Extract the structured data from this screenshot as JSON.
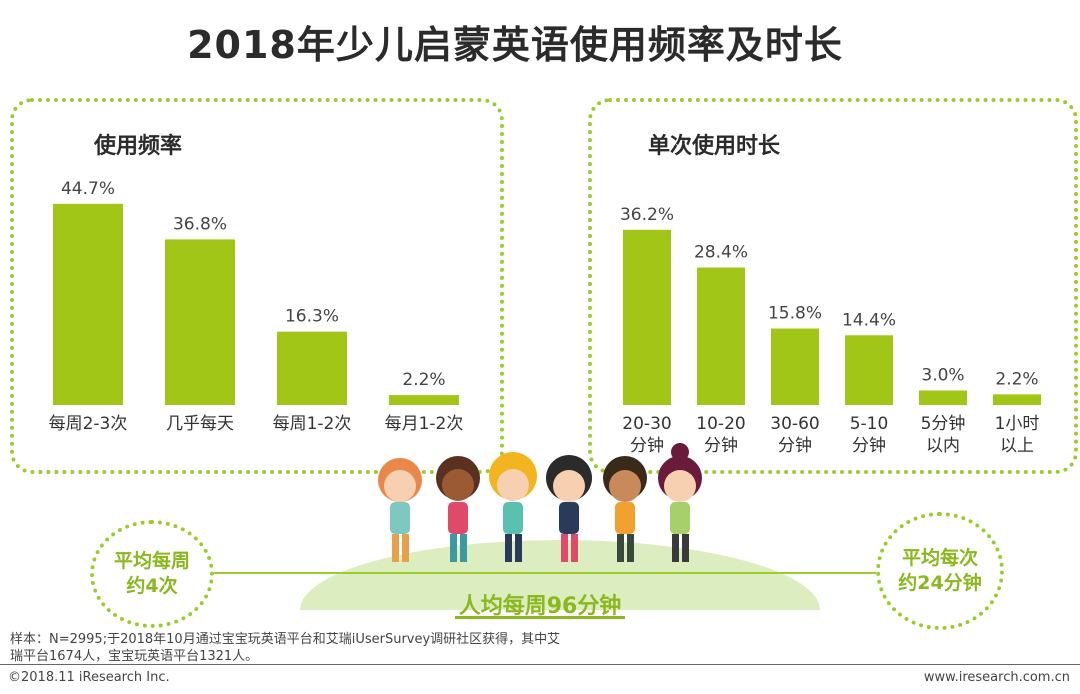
{
  "title": "2018年少儿启蒙英语使用频率及时长",
  "chart_data": [
    {
      "type": "bar",
      "title": "使用频率",
      "categories": [
        "每周2-3次",
        "几乎每天",
        "每周1-2次",
        "每月1-2次"
      ],
      "values": [
        44.7,
        36.8,
        16.3,
        2.2
      ],
      "value_labels": [
        "44.7%",
        "36.8%",
        "16.3%",
        "2.2%"
      ],
      "bar_color": "#a2c617"
    },
    {
      "type": "bar",
      "title": "单次使用时长",
      "categories": [
        [
          "20-30",
          "分钟"
        ],
        [
          "10-20",
          "分钟"
        ],
        [
          "30-60",
          "分钟"
        ],
        [
          "5-10",
          "分钟"
        ],
        [
          "5分钟",
          "以内"
        ],
        [
          "1小时",
          "以上"
        ]
      ],
      "values": [
        36.2,
        28.4,
        15.8,
        14.4,
        3.0,
        2.2
      ],
      "value_labels": [
        "36.2%",
        "28.4%",
        "15.8%",
        "14.4%",
        "3.0%",
        "2.2%"
      ],
      "bar_color": "#a2c617"
    }
  ],
  "bubble_left": {
    "line1": "平均每周",
    "line2": "约4次"
  },
  "bubble_right": {
    "line1": "平均每次",
    "line2": "约24分钟"
  },
  "center_text": "人均每周96分钟",
  "note": "样本：N=2995;于2018年10月通过宝宝玩英语平台和艾瑞iUserSurvey调研社区获得，其中艾瑞平台1674人，宝宝玩英语平台1321人。",
  "footer_left": "©2018.11 iResearch Inc.",
  "footer_right": "www.iresearch.com.cn",
  "colors": {
    "accent": "#9ccc2a",
    "bar": "#a2c617",
    "highlight_text": "#8ab81e"
  }
}
